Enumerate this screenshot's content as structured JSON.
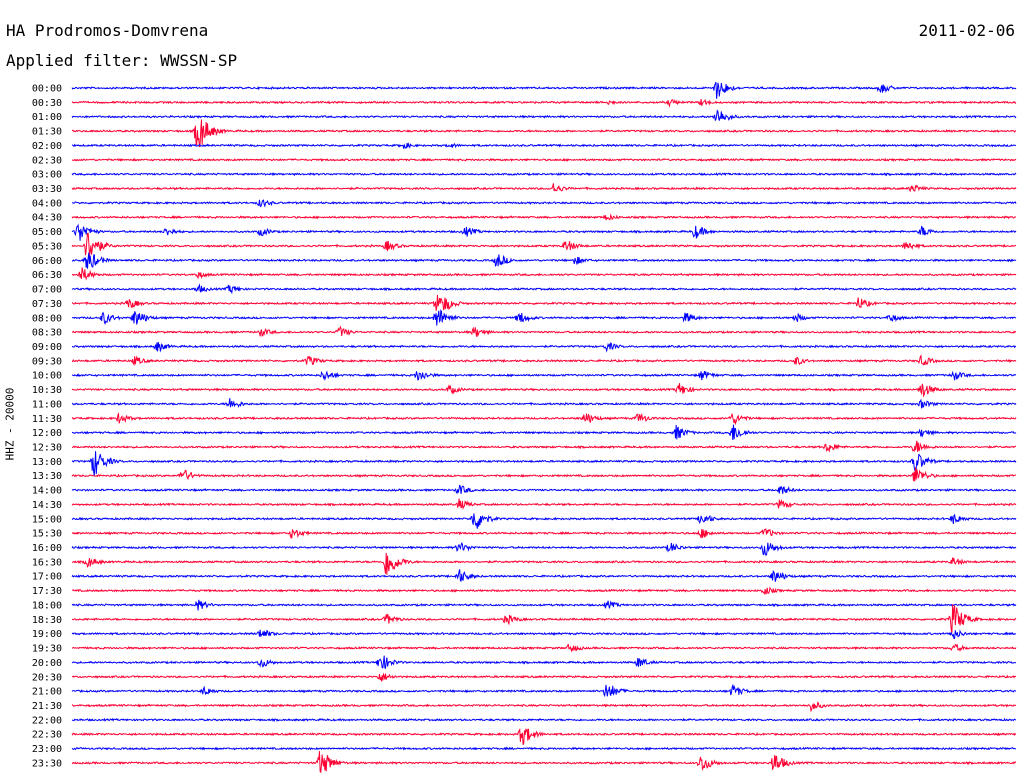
{
  "header": {
    "station": "HA Prodromos-Domvrena",
    "date": "2011-02-06",
    "filter": "Applied filter: WWSSN-SP"
  },
  "chart_data": {
    "type": "line",
    "ylabel": "HHZ - 20000",
    "xlabel": "",
    "title": "",
    "colors": {
      "even_trace": "#0000ff",
      "odd_trace": "#ff0033",
      "background": "#ffffff"
    },
    "grid": false,
    "row_labels": [
      "00:00",
      "00:30",
      "01:00",
      "01:30",
      "02:00",
      "02:30",
      "03:00",
      "03:30",
      "04:00",
      "04:30",
      "05:00",
      "05:30",
      "06:00",
      "06:30",
      "07:00",
      "07:30",
      "08:00",
      "08:30",
      "09:00",
      "09:30",
      "10:00",
      "10:30",
      "11:00",
      "11:30",
      "12:00",
      "12:30",
      "13:00",
      "13:30",
      "14:00",
      "14:30",
      "15:00",
      "15:30",
      "16:00",
      "16:30",
      "17:00",
      "17:30",
      "18:00",
      "18:30",
      "19:00",
      "19:30",
      "20:00",
      "20:30",
      "21:00",
      "21:30",
      "22:00",
      "22:30",
      "23:00",
      "23:30"
    ],
    "events_minute_amplitude": {
      "00:00": [
        [
          20.5,
          12
        ],
        [
          25.7,
          6
        ]
      ],
      "00:30": [
        [
          17,
          3
        ],
        [
          19,
          4
        ],
        [
          20,
          4
        ]
      ],
      "01:00": [
        [
          20.5,
          10
        ]
      ],
      "01:30": [
        [
          4,
          22
        ]
      ],
      "02:00": [
        [
          10.5,
          4
        ],
        [
          12,
          3
        ]
      ],
      "03:30": [
        [
          15.3,
          6
        ],
        [
          26.7,
          5
        ]
      ],
      "04:00": [
        [
          6,
          5
        ]
      ],
      "04:30": [
        [
          17,
          4
        ]
      ],
      "05:00": [
        [
          0.2,
          12
        ],
        [
          3,
          5
        ],
        [
          6,
          5
        ],
        [
          12.5,
          6
        ],
        [
          19.8,
          8
        ],
        [
          27,
          6
        ]
      ],
      "05:30": [
        [
          0.5,
          18
        ],
        [
          10,
          6
        ],
        [
          15.7,
          7
        ],
        [
          26.5,
          6
        ]
      ],
      "06:00": [
        [
          0.5,
          12
        ],
        [
          13.5,
          8
        ],
        [
          16,
          5
        ]
      ],
      "06:30": [
        [
          0.3,
          8
        ],
        [
          4,
          4
        ]
      ],
      "07:00": [
        [
          4,
          5
        ],
        [
          5,
          5
        ]
      ],
      "07:30": [
        [
          1.8,
          6
        ],
        [
          11.6,
          10
        ],
        [
          11.8,
          10
        ],
        [
          25,
          7
        ]
      ],
      "08:00": [
        [
          1,
          7
        ],
        [
          2,
          10
        ],
        [
          11.6,
          12
        ],
        [
          14.2,
          7
        ],
        [
          19.5,
          6
        ],
        [
          23,
          5
        ],
        [
          26,
          5
        ]
      ],
      "08:30": [
        [
          6,
          5
        ],
        [
          8.5,
          6
        ],
        [
          12.8,
          6
        ]
      ],
      "09:00": [
        [
          2.7,
          6
        ],
        [
          17,
          5
        ]
      ],
      "09:30": [
        [
          2,
          5
        ],
        [
          7.5,
          6
        ],
        [
          23,
          5
        ],
        [
          27,
          6
        ]
      ],
      "10:00": [
        [
          8,
          6
        ],
        [
          11,
          7
        ],
        [
          20,
          6
        ],
        [
          28,
          6
        ]
      ],
      "10:30": [
        [
          12,
          5
        ],
        [
          19.3,
          7
        ],
        [
          27,
          9
        ]
      ],
      "11:00": [
        [
          5,
          7
        ],
        [
          27,
          5
        ]
      ],
      "11:30": [
        [
          1.5,
          6
        ],
        [
          16.3,
          7
        ],
        [
          18,
          6
        ],
        [
          21,
          7
        ]
      ],
      "12:00": [
        [
          19.2,
          8
        ],
        [
          21,
          10
        ],
        [
          27,
          5
        ]
      ],
      "12:30": [
        [
          24,
          6
        ],
        [
          26.8,
          8
        ]
      ],
      "13:00": [
        [
          0.7,
          16
        ],
        [
          26.8,
          12
        ]
      ],
      "13:30": [
        [
          3.5,
          8
        ],
        [
          26.8,
          10
        ]
      ],
      "14:00": [
        [
          12.3,
          6
        ],
        [
          22.5,
          6
        ]
      ],
      "14:30": [
        [
          12.3,
          6
        ],
        [
          22.5,
          6
        ]
      ],
      "15:00": [
        [
          12.8,
          14
        ],
        [
          20,
          7
        ],
        [
          28,
          6
        ]
      ],
      "15:30": [
        [
          7,
          6
        ],
        [
          20,
          6
        ],
        [
          22,
          6
        ]
      ],
      "16:00": [
        [
          12.3,
          6
        ],
        [
          19,
          6
        ],
        [
          22,
          10
        ]
      ],
      "16:30": [
        [
          10,
          18
        ],
        [
          0.5,
          6
        ],
        [
          28,
          5
        ]
      ],
      "17:00": [
        [
          12.3,
          8
        ],
        [
          22.3,
          8
        ]
      ],
      "17:30": [
        [
          22,
          5
        ]
      ],
      "18:00": [
        [
          4,
          6
        ],
        [
          17,
          5
        ]
      ],
      "18:30": [
        [
          28,
          18
        ],
        [
          10,
          6
        ],
        [
          13.8,
          6
        ]
      ],
      "19:00": [
        [
          6,
          6
        ],
        [
          28,
          6
        ]
      ],
      "19:30": [
        [
          15.8,
          5
        ],
        [
          28,
          5
        ]
      ],
      "20:00": [
        [
          6,
          6
        ],
        [
          9.8,
          10
        ],
        [
          18,
          6
        ]
      ],
      "20:30": [
        [
          9.8,
          6
        ]
      ],
      "21:00": [
        [
          4.2,
          5
        ],
        [
          17,
          10
        ],
        [
          21,
          7
        ]
      ],
      "21:30": [
        [
          23.5,
          6
        ]
      ],
      "22:30": [
        [
          14.3,
          12
        ]
      ],
      "23:30": [
        [
          7.9,
          16
        ],
        [
          20,
          10
        ],
        [
          22.3,
          12
        ]
      ]
    }
  }
}
